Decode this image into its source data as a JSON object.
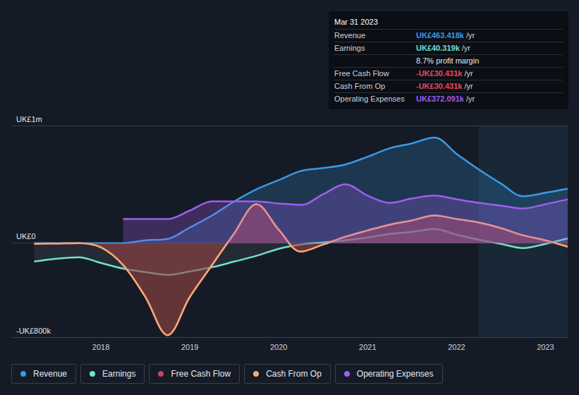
{
  "chart_data": {
    "type": "line",
    "x": [
      2017.25,
      2017.5,
      2017.75,
      2018,
      2018.25,
      2018.5,
      2018.75,
      2019,
      2019.25,
      2019.5,
      2019.75,
      2020,
      2020.25,
      2020.5,
      2020.75,
      2021,
      2021.25,
      2021.5,
      2021.75,
      2022,
      2022.25,
      2022.5,
      2022.75,
      2023,
      2023.25
    ],
    "xlim": [
      2017,
      2023.25
    ],
    "xticks": [
      2018,
      2019,
      2020,
      2021,
      2022,
      2023
    ],
    "ylim": [
      -800000,
      1000000
    ],
    "yticks": [
      {
        "value": -800000,
        "label": "-UK£800k"
      },
      {
        "value": 0,
        "label": "UK£0"
      },
      {
        "value": 1000000,
        "label": "UK£1m"
      }
    ],
    "grid": true,
    "legend": "bottom",
    "shaded_range": [
      2022.25,
      2023.25
    ],
    "series": [
      {
        "name": "Revenue",
        "color": "#3a9ae6",
        "values": [
          0,
          0,
          0,
          0,
          0,
          24000,
          36000,
          133000,
          235000,
          355000,
          458000,
          536000,
          614000,
          639000,
          669000,
          735000,
          807000,
          849000,
          898000,
          759000,
          627000,
          506000,
          398000,
          428000,
          463418
        ]
      },
      {
        "name": "Earnings",
        "color": "#6ee3cc",
        "values": [
          -157000,
          -133000,
          -120000,
          -169000,
          -217000,
          -247000,
          -271000,
          -241000,
          -205000,
          -157000,
          -108000,
          -48000,
          -12000,
          6000,
          24000,
          48000,
          78000,
          96000,
          120000,
          72000,
          30000,
          -6000,
          -42000,
          -6000,
          40319
        ]
      },
      {
        "name": "Free Cash Flow",
        "color": "#c2456b",
        "values": [
          -6000,
          -3000,
          0,
          -36000,
          -187000,
          -458000,
          -783000,
          -458000,
          -187000,
          84000,
          331000,
          114000,
          -72000,
          -12000,
          54000,
          108000,
          157000,
          193000,
          235000,
          205000,
          175000,
          127000,
          66000,
          24000,
          -30431
        ]
      },
      {
        "name": "Cash From Op",
        "color": "#f2aa74",
        "values": [
          -6000,
          -3000,
          0,
          -36000,
          -187000,
          -458000,
          -783000,
          -458000,
          -187000,
          84000,
          331000,
          114000,
          -72000,
          -12000,
          54000,
          108000,
          157000,
          193000,
          235000,
          205000,
          175000,
          127000,
          66000,
          24000,
          -30431
        ]
      },
      {
        "name": "Operating Expenses",
        "color": "#a05eea",
        "values": [
          null,
          null,
          null,
          null,
          205000,
          205000,
          205000,
          277000,
          355000,
          355000,
          355000,
          337000,
          325000,
          416000,
          500000,
          404000,
          343000,
          380000,
          404000,
          373000,
          343000,
          319000,
          295000,
          331000,
          372091
        ]
      }
    ],
    "tooltip": {
      "title": "Mar 31 2023",
      "rows": [
        {
          "label": "Revenue",
          "value": "UK£463.418k",
          "unit": "/yr",
          "color": "#3a9ae6"
        },
        {
          "label": "Earnings",
          "value": "UK£40.319k",
          "unit": "/yr",
          "color": "#6ee3cc"
        },
        {
          "text": "8.7% profit margin"
        },
        {
          "label": "Free Cash Flow",
          "value": "-UK£30.431k",
          "unit": "/yr",
          "color": "#e8485c"
        },
        {
          "label": "Cash From Op",
          "value": "-UK£30.431k",
          "unit": "/yr",
          "color": "#e8485c"
        },
        {
          "label": "Operating Expenses",
          "value": "UK£372.091k",
          "unit": "/yr",
          "color": "#a05eea"
        }
      ]
    }
  }
}
